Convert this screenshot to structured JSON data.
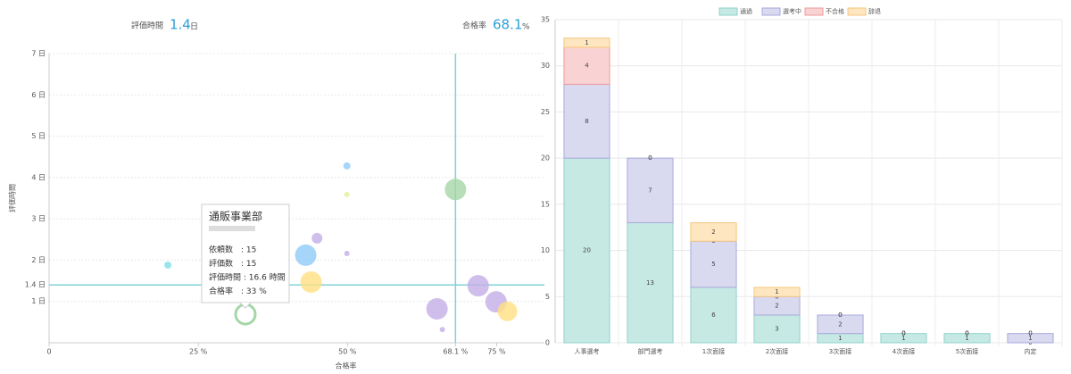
{
  "header": {
    "left": {
      "label": "評価時間",
      "value": 1.4,
      "unit": "日"
    },
    "right": {
      "label": "合格率",
      "value": 68.1,
      "unit": "%"
    }
  },
  "chart_data": [
    {
      "type": "bubble",
      "x_label": "合格率",
      "y_label": "評価時間",
      "xlim": [
        0,
        83
      ],
      "ylim": [
        0,
        7
      ],
      "xticks": [
        0,
        {
          "value": 25,
          "label": "25 %"
        },
        {
          "value": 50,
          "label": "50 %"
        },
        {
          "value": 68.1,
          "label": "68.1 %"
        },
        {
          "value": 75,
          "label": "75 %"
        }
      ],
      "yticks": [
        {
          "value": 1,
          "label": "1 日"
        },
        {
          "value": 1.4,
          "label": "1.4 日"
        },
        {
          "value": 2,
          "label": "2 日"
        },
        {
          "value": 3,
          "label": "3 日"
        },
        {
          "value": 4,
          "label": "4 日"
        },
        {
          "value": 5,
          "label": "5 日"
        },
        {
          "value": 6,
          "label": "6 日"
        },
        {
          "value": 7,
          "label": "7 日"
        }
      ],
      "ref_x": 68.1,
      "ref_y": 1.4,
      "ref_color": "#7fd3d8",
      "x": [
        19.9,
        49.9,
        49.9,
        68.1,
        44.9,
        49.9,
        43.0,
        43.9,
        71.9,
        65.0,
        74.9,
        76.8,
        65.9,
        32.9
      ],
      "values": [
        1.88,
        4.28,
        3.59,
        3.71,
        2.53,
        2.16,
        2.12,
        1.47,
        1.38,
        0.82,
        0.99,
        0.76,
        0.32,
        0.69
      ],
      "sizes": [
        4,
        4,
        3,
        12,
        6,
        3,
        12,
        12,
        12,
        12,
        12,
        11,
        3,
        11
      ],
      "colors": [
        "#80deea",
        "#90caf9",
        "#e6ee9c",
        "#a5d6a7",
        "#c3aee6",
        "#c3aee6",
        "#90caf9",
        "#ffe082",
        "#c3aee6",
        "#c3aee6",
        "#c3aee6",
        "#ffe082",
        "#c3aee6",
        "#a5d6a7"
      ],
      "hover_index": 13,
      "tooltip": {
        "title": "通販事業部",
        "lines": [
          "依頼数　: 15",
          "評価数　: 15",
          "評価時間 : 16.6 時間",
          "合格率　: 33 %"
        ]
      }
    },
    {
      "type": "stacked-bar",
      "categories": [
        "人事選考",
        "部門選考",
        "1次面接",
        "2次面接",
        "3次面接",
        "4次面接",
        "5次面接",
        "内定"
      ],
      "ylim": [
        0,
        35
      ],
      "yticks": [
        0,
        5,
        10,
        15,
        20,
        25,
        30,
        35
      ],
      "series": [
        {
          "name": "通過",
          "color": "#c6e9e4",
          "stroke": "#8fd3c9",
          "values": [
            20,
            13,
            6,
            3,
            1,
            1,
            1,
            0
          ]
        },
        {
          "name": "選考中",
          "color": "#d9d9f0",
          "stroke": "#a9a9dc",
          "values": [
            8,
            7,
            5,
            2,
            2,
            0,
            0,
            1
          ]
        },
        {
          "name": "不合格",
          "color": "#f9d3d3",
          "stroke": "#ef9a9a",
          "values": [
            4,
            0,
            0,
            0,
            0,
            0,
            0,
            0
          ]
        },
        {
          "name": "辞退",
          "color": "#fde6c0",
          "stroke": "#f7c77d",
          "values": [
            1,
            0,
            2,
            1,
            0,
            0,
            0,
            0
          ]
        }
      ]
    }
  ]
}
